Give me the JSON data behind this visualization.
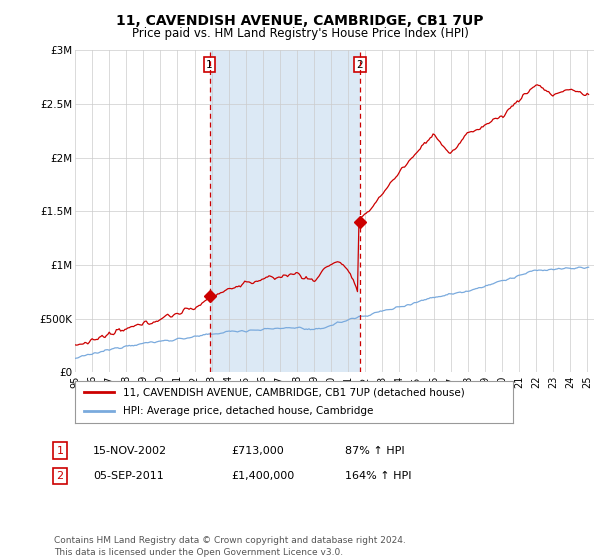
{
  "title": "11, CAVENDISH AVENUE, CAMBRIDGE, CB1 7UP",
  "subtitle": "Price paid vs. HM Land Registry's House Price Index (HPI)",
  "title_fontsize": 10,
  "subtitle_fontsize": 8.5,
  "background_color": "#ffffff",
  "plot_bg_color": "#ffffff",
  "shade_color": "#dce9f5",
  "grid_color": "#cccccc",
  "ylim": [
    0,
    3000000
  ],
  "yticks": [
    0,
    500000,
    1000000,
    1500000,
    2000000,
    2500000,
    3000000
  ],
  "ytick_labels": [
    "£0",
    "£500K",
    "£1M",
    "£1.5M",
    "£2M",
    "£2.5M",
    "£3M"
  ],
  "legend_label_red": "11, CAVENDISH AVENUE, CAMBRIDGE, CB1 7UP (detached house)",
  "legend_label_blue": "HPI: Average price, detached house, Cambridge",
  "transaction1_date": "15-NOV-2002",
  "transaction1_price": "£713,000",
  "transaction1_hpi": "87% ↑ HPI",
  "transaction2_date": "05-SEP-2011",
  "transaction2_price": "£1,400,000",
  "transaction2_hpi": "164% ↑ HPI",
  "footer": "Contains HM Land Registry data © Crown copyright and database right 2024.\nThis data is licensed under the Open Government Licence v3.0.",
  "red_color": "#cc0000",
  "blue_color": "#7aaadd",
  "vline1_x": 2002.88,
  "vline2_x": 2011.67,
  "marker1_x": 2002.88,
  "marker1_y": 713000,
  "marker2_x": 2011.67,
  "marker2_y": 1400000,
  "xmin": 1995.0,
  "xmax": 2025.4
}
